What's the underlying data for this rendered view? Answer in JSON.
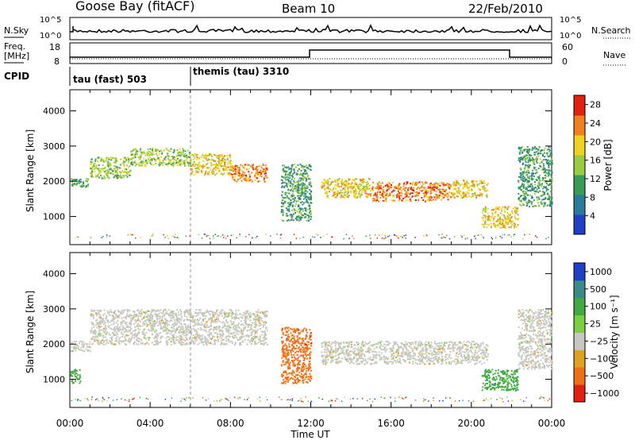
{
  "header": {
    "station": "Goose Bay (fitACF)",
    "beam": "Beam 10",
    "date": "22/Feb/2010"
  },
  "colors": {
    "line": "#000000",
    "ground_scatter": "#c8c8c0",
    "power_scale": [
      "#2040c8",
      "#2a7a9a",
      "#3a9a5a",
      "#9acc40",
      "#f0d020",
      "#f08020",
      "#e02010"
    ],
    "velocity_scale": [
      "#2040c8",
      "#3a8a8a",
      "#40aa40",
      "#7ad040",
      "#c8c8c0",
      "#e0a020",
      "#f07018",
      "#e02010"
    ]
  },
  "noise_panel": {
    "left_label": "N.Sky",
    "right_label": "N.Search",
    "left_ticks": [
      "10^5",
      "10^0"
    ],
    "right_ticks": [
      "10^5",
      "10^0"
    ]
  },
  "freq_panel": {
    "left_label_1": "Freq.",
    "left_label_2": "[MHz]",
    "right_label": "Nave",
    "left_ticks": [
      "18",
      "8"
    ],
    "right_ticks": [
      "60",
      "0"
    ]
  },
  "cpid": {
    "label": "CPID",
    "programs": [
      {
        "name": "tau (fast) 503",
        "start_hour": 0
      },
      {
        "name": "themis (tau) 3310",
        "start_hour": 6
      }
    ]
  },
  "chart_data": [
    {
      "type": "heatmap",
      "title": "",
      "ylabel": "Slant Range [km]",
      "xlabel": "",
      "xlim": [
        0,
        24
      ],
      "ylim": [
        200,
        4600
      ],
      "y_ticks": [
        "1000",
        "2000",
        "3000",
        "4000"
      ],
      "colorbar_label": "Power [dB]",
      "colorbar_ticks": [
        "4",
        "8",
        "12",
        "16",
        "20",
        "24",
        "28"
      ],
      "colorbar_range": [
        0,
        30
      ],
      "regions": [
        {
          "x": [
            0.0,
            1.0
          ],
          "y": [
            1850,
            2100
          ],
          "value": 12
        },
        {
          "x": [
            1.0,
            3.0
          ],
          "y": [
            2100,
            2700
          ],
          "value": 14
        },
        {
          "x": [
            3.0,
            6.0
          ],
          "y": [
            2450,
            2950
          ],
          "value": 16
        },
        {
          "x": [
            6.0,
            8.0
          ],
          "y": [
            2200,
            2800
          ],
          "value": 18
        },
        {
          "x": [
            8.0,
            9.8
          ],
          "y": [
            2000,
            2500
          ],
          "value": 24
        },
        {
          "x": [
            10.5,
            12.0
          ],
          "y": [
            900,
            2500
          ],
          "value": 10
        },
        {
          "x": [
            12.5,
            15.0
          ],
          "y": [
            1550,
            2100
          ],
          "value": 20
        },
        {
          "x": [
            15.0,
            19.0
          ],
          "y": [
            1450,
            2000
          ],
          "value": 22
        },
        {
          "x": [
            19.0,
            20.8
          ],
          "y": [
            1550,
            2050
          ],
          "value": 20
        },
        {
          "x": [
            20.5,
            22.3
          ],
          "y": [
            700,
            1300
          ],
          "value": 20
        },
        {
          "x": [
            22.3,
            24.0
          ],
          "y": [
            1300,
            3000
          ],
          "value": 10
        }
      ]
    },
    {
      "type": "heatmap",
      "title": "",
      "ylabel": "Slant Range [km]",
      "xlabel": "Time UT",
      "xlim": [
        0,
        24
      ],
      "ylim": [
        200,
        4600
      ],
      "x_ticks": [
        "00:00",
        "04:00",
        "08:00",
        "12:00",
        "16:00",
        "20:00",
        "00:00"
      ],
      "y_ticks": [
        "1000",
        "2000",
        "3000",
        "4000"
      ],
      "colorbar_label": "Velocity [m s⁻¹]",
      "colorbar_ticks": [
        "1000",
        "500",
        "100",
        "25",
        "−25",
        "−100",
        "−500",
        "−1000"
      ],
      "regions": [
        {
          "x": [
            0.0,
            1.0
          ],
          "y": [
            1800,
            2100
          ],
          "value": 0
        },
        {
          "x": [
            1.0,
            9.8
          ],
          "y": [
            2000,
            3000
          ],
          "value": 0
        },
        {
          "x": [
            0.0,
            0.5
          ],
          "y": [
            900,
            1300
          ],
          "value": 100
        },
        {
          "x": [
            10.5,
            12.0
          ],
          "y": [
            900,
            2500
          ],
          "value": -100
        },
        {
          "x": [
            12.5,
            20.8
          ],
          "y": [
            1450,
            2100
          ],
          "value": 0
        },
        {
          "x": [
            20.5,
            22.3
          ],
          "y": [
            700,
            1300
          ],
          "value": 300
        },
        {
          "x": [
            22.3,
            24.0
          ],
          "y": [
            1300,
            3000
          ],
          "value": 0
        }
      ]
    }
  ]
}
